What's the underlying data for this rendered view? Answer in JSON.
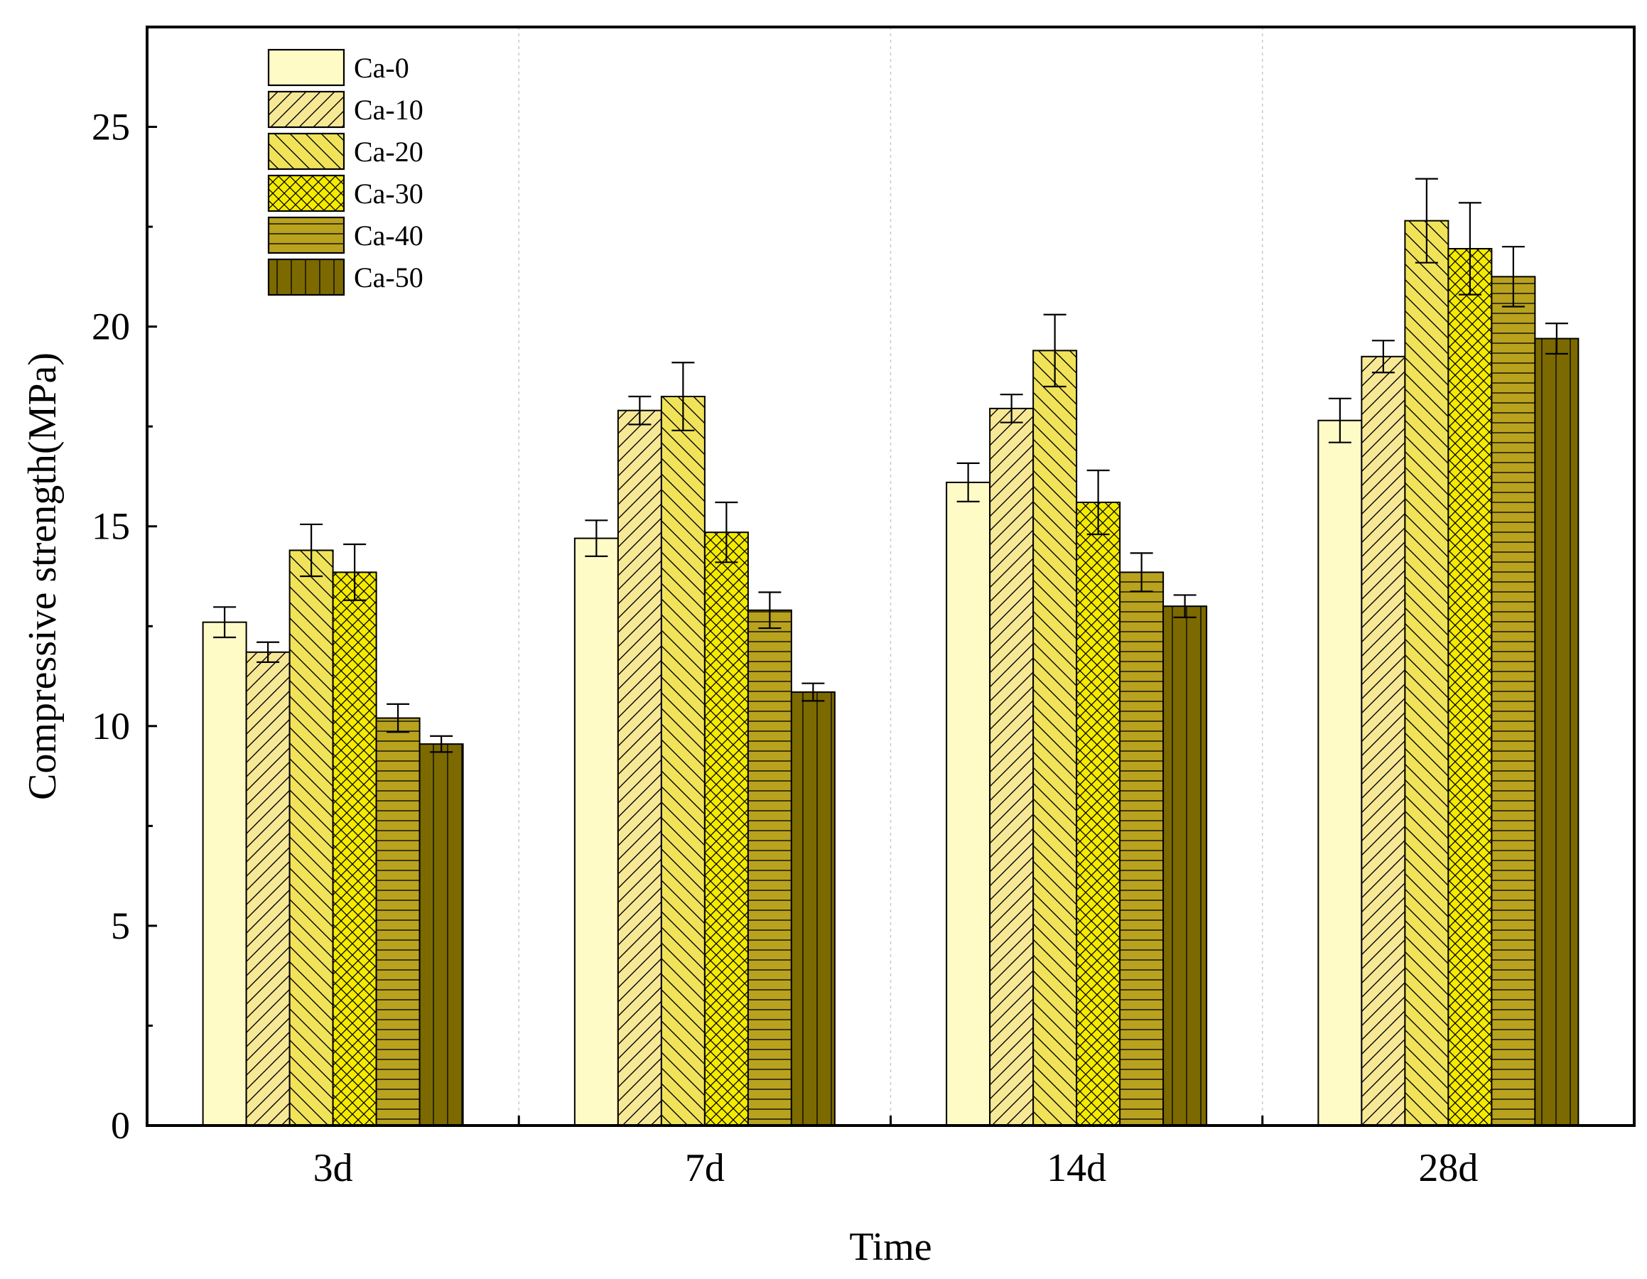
{
  "chart_data": {
    "type": "bar",
    "xlabel": "Time",
    "ylabel": "Compressive strength(MPa)",
    "ylim": [
      0,
      27.5
    ],
    "yticks": [
      0,
      5,
      10,
      15,
      20,
      25
    ],
    "yticks_minor": [
      2.5,
      7.5,
      12.5,
      17.5,
      22.5
    ],
    "categories": [
      "3d",
      "7d",
      "14d",
      "28d"
    ],
    "legend_position": "top-left",
    "series": [
      {
        "name": "Ca-0",
        "values": [
          12.6,
          14.7,
          16.1,
          17.65
        ],
        "errors": [
          0.38,
          0.45,
          0.48,
          0.55
        ],
        "color": "#FFFBC6",
        "pattern": "none"
      },
      {
        "name": "Ca-10",
        "values": [
          11.85,
          17.9,
          17.95,
          19.25
        ],
        "errors": [
          0.25,
          0.35,
          0.35,
          0.4
        ],
        "color": "#F7E896",
        "pattern": "diag-right"
      },
      {
        "name": "Ca-20",
        "values": [
          14.4,
          18.25,
          19.4,
          22.65
        ],
        "errors": [
          0.65,
          0.85,
          0.9,
          1.05
        ],
        "color": "#F0E35A",
        "pattern": "diag-left"
      },
      {
        "name": "Ca-30",
        "values": [
          13.85,
          14.85,
          15.6,
          21.95
        ],
        "errors": [
          0.7,
          0.75,
          0.8,
          1.15
        ],
        "color": "#F5EB00",
        "pattern": "crosshatch"
      },
      {
        "name": "Ca-40",
        "values": [
          10.2,
          12.9,
          13.85,
          21.25
        ],
        "errors": [
          0.35,
          0.45,
          0.48,
          0.75
        ],
        "color": "#B9A21E",
        "pattern": "horizontal"
      },
      {
        "name": "Ca-50",
        "values": [
          9.55,
          10.85,
          13.0,
          19.7
        ],
        "errors": [
          0.2,
          0.22,
          0.28,
          0.38
        ],
        "color": "#7C6A00",
        "pattern": "vertical"
      }
    ]
  }
}
